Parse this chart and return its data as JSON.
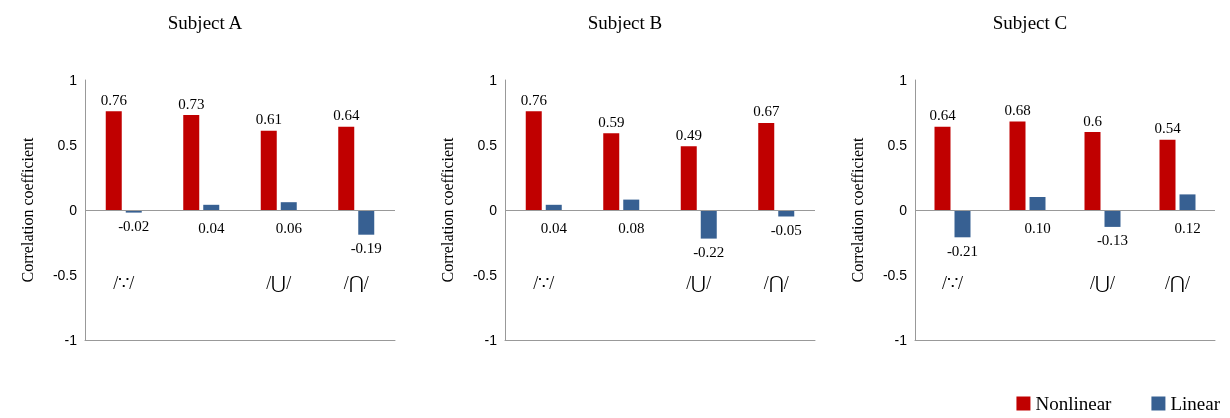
{
  "chart_data": [
    {
      "type": "bar",
      "title": "Subject A",
      "ylabel": "Correlation coefficient",
      "categories": [
        "/∵/",
        null,
        "/⋃/",
        "/⋂/"
      ],
      "series": [
        {
          "color": "#c00000",
          "values": [
            0.76,
            0.73,
            0.61,
            0.64
          ],
          "value_labels": [
            "0.76",
            "0.73",
            "0.61",
            "0.64"
          ]
        },
        {
          "color": "#376092",
          "values": [
            -0.02,
            0.04,
            0.06,
            -0.19
          ],
          "value_labels": [
            "-0.02",
            "0.04",
            "0.06",
            "-0.19"
          ]
        }
      ],
      "ylim": [
        -1,
        1
      ],
      "yticks": [
        -1,
        -0.5,
        0,
        0.5,
        1
      ],
      "ref_lines": [
        {
          "axis": "y",
          "value": 0
        }
      ],
      "grid": false,
      "legend": false
    },
    {
      "type": "bar",
      "title": "Subject B",
      "ylabel": "Correlation coefficient",
      "categories": [
        "/∵/",
        null,
        "/⋃/",
        "/⋂/"
      ],
      "series": [
        {
          "color": "#c00000",
          "values": [
            0.76,
            0.59,
            0.49,
            0.67
          ],
          "value_labels": [
            "0.76",
            "0.59",
            "0.49",
            "0.67"
          ]
        },
        {
          "color": "#376092",
          "values": [
            0.04,
            0.08,
            -0.22,
            -0.05
          ],
          "value_labels": [
            "0.04",
            "0.08",
            "-0.22",
            "-0.05"
          ]
        }
      ],
      "ylim": [
        -1,
        1
      ],
      "yticks": [
        -1,
        -0.5,
        0,
        0.5,
        1
      ],
      "ref_lines": [
        {
          "axis": "y",
          "value": 0
        }
      ],
      "grid": false,
      "legend": false
    },
    {
      "type": "bar",
      "title": "Subject C",
      "ylabel": "Correlation coefficient",
      "categories": [
        "/∵/",
        null,
        "/⋃/",
        "/⋂/"
      ],
      "series": [
        {
          "name": "Nonlinear",
          "color": "#c00000",
          "values": [
            0.64,
            0.68,
            0.6,
            0.54
          ],
          "value_labels": [
            "0.64",
            "0.68",
            "0.6",
            "0.54"
          ]
        },
        {
          "name": "Linear",
          "color": "#376092",
          "values": [
            -0.21,
            0.1,
            -0.13,
            0.12
          ],
          "value_labels": [
            "-0.21",
            "0.10",
            "-0.13",
            "0.12"
          ]
        }
      ],
      "ylim": [
        -1,
        1
      ],
      "yticks": [
        -1,
        -0.5,
        0,
        0.5,
        1
      ],
      "ref_lines": [
        {
          "axis": "y",
          "value": 0
        }
      ],
      "grid": false,
      "legend": "bottom right"
    }
  ]
}
